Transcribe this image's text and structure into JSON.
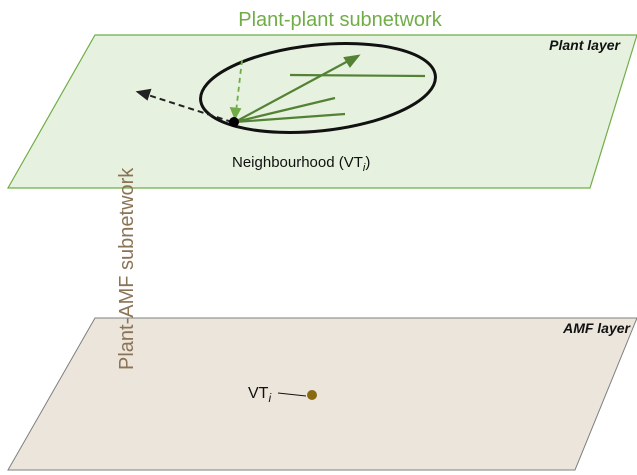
{
  "title": "Plant-plant subnetwork",
  "plant_layer": {
    "label": "Plant layer"
  },
  "neighbourhood": {
    "text": "Neighbourhood (VT",
    "subscript": "i",
    "close": ")"
  },
  "side_label": "Plant-AMF subnetwork",
  "amf_layer": {
    "label": "AMF layer"
  },
  "focal_node": {
    "text": "VT",
    "subscript": "i"
  }
}
